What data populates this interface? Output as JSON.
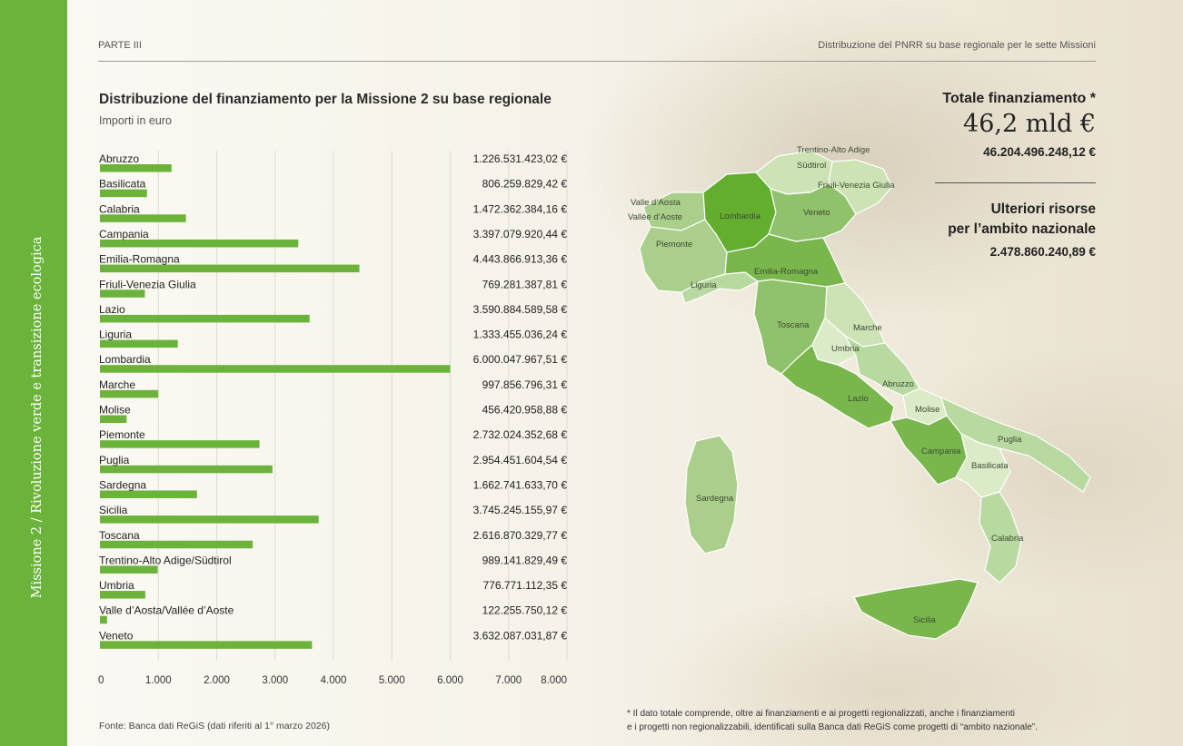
{
  "side_title": "Missione 2 / Rivoluzione verde e transizione ecologica",
  "header": {
    "part": "PARTE III",
    "section": "Distribuzione del PNRR su base  regionale per le sette Missioni"
  },
  "totals": {
    "title": "Totale finanziamento *",
    "big": "46,2 mld €",
    "exact": "46.204.496.248,12 €",
    "extra_title_line1": "Ulteriori risorse",
    "extra_title_line2": "per l’ambito nazionale",
    "extra_value": "2.478.860.240,89 €"
  },
  "source": "Fonte: Banca dati ReGiS (dati riferiti al 1° marzo 2026)",
  "footnote": [
    "* Il dato totale comprende, oltre ai finanziamenti e ai progetti regionalizzati, anche i finanziamenti",
    "e i progetti non regionalizzabili, identificati sulla Banca dati ReGiS come progetti di “ambito nazionale”."
  ],
  "colors": {
    "band": "#6bb33a",
    "bar": "#6bb33a",
    "grid": "#dcdcd6"
  },
  "chart_data": {
    "type": "bar",
    "orientation": "horizontal",
    "title": "Distribuzione del finanziamento per la Missione 2 su base regionale",
    "subtitle": "Importi in euro",
    "unit_axis": "milioni di euro",
    "xlim": [
      0,
      8000
    ],
    "x_ticks": [
      "0",
      "1.000",
      "2.000",
      "3.000",
      "4.000",
      "5.000",
      "6.000",
      "7.000",
      "8.000"
    ],
    "grid": true,
    "categories": [
      "Abruzzo",
      "Basilicata",
      "Calabria",
      "Campania",
      "Emilia-Romagna",
      "Friuli-Venezia Giulia",
      "Lazio",
      "Liguria",
      "Lombardia",
      "Marche",
      "Molise",
      "Piemonte",
      "Puglia",
      "Sardegna",
      "Sicilia",
      "Toscana",
      "Trentino-Alto Adige/Südtirol",
      "Umbria",
      "Valle d’Aosta/Vallée d’Aoste",
      "Veneto"
    ],
    "values": [
      1226.53,
      806.26,
      1472.36,
      3397.08,
      4443.87,
      769.28,
      3590.88,
      1333.46,
      6000.05,
      997.86,
      456.42,
      2732.02,
      2954.45,
      1662.74,
      3745.25,
      2616.87,
      989.14,
      776.77,
      122.26,
      3632.09
    ],
    "value_labels": [
      "1.226.531.423,02 €",
      "806.259.829,42 €",
      "1.472.362.384,16 €",
      "3.397.079.920,44 €",
      "4.443.866.913,36 €",
      "769.281.387,81 €",
      "3.590.884.589,58 €",
      "1.333.455.036,24 €",
      "6.000.047.967,51 €",
      "997.856.796,31 €",
      "456.420.958,88 €",
      "2.732.024.352,68 €",
      "2.954.451.604,54 €",
      "1.662.741.633,70 €",
      "3.745.245.155,97 €",
      "2.616.870.329,77 €",
      "989.141.829,49 €",
      "776.771.112,35 €",
      "122.255.750,12 €",
      "3.632.087.031,87 €"
    ]
  },
  "map": {
    "labels": [
      "Trentino-Alto Adige",
      "Südtirol",
      "Friuli-Venezia Giulia",
      "Valle d’Aosta",
      "Vallée d’Aoste",
      "Lombardia",
      "Veneto",
      "Piemonte",
      "Emilia-Romagna",
      "Liguria",
      "Toscana",
      "Marche",
      "Umbria",
      "Abruzzo",
      "Lazio",
      "Molise",
      "Puglia",
      "Campania",
      "Basilicata",
      "Sardegna",
      "Calabria",
      "Sicilia"
    ]
  }
}
